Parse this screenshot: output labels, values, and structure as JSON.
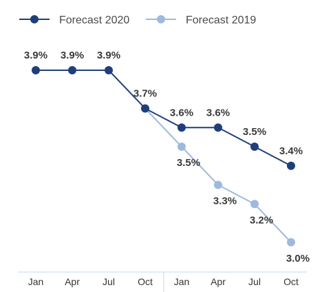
{
  "chart_data": {
    "type": "line",
    "title": "",
    "xlabel": "",
    "ylabel": "",
    "categories": [
      "Jan",
      "Apr",
      "Jul",
      "Oct",
      "Jan",
      "Apr",
      "Jul",
      "Oct"
    ],
    "ylim": [
      2.85,
      4.05
    ],
    "grid": false,
    "legend_position": "top-left",
    "series": [
      {
        "name": "Forecast 2020",
        "color": "#1f3f7a",
        "values": [
          3.9,
          3.9,
          3.9,
          3.7,
          3.6,
          3.6,
          3.5,
          3.4
        ],
        "labels": [
          "3.9%",
          "3.9%",
          "3.9%",
          "3.7%",
          "3.6%",
          "3.6%",
          "3.5%",
          "3.4%"
        ]
      },
      {
        "name": "Forecast 2019",
        "color": "#9fb9dd",
        "values": [
          null,
          null,
          null,
          3.7,
          3.5,
          3.3,
          3.2,
          3.0
        ],
        "labels": [
          "",
          "",
          "",
          "",
          "3.5%",
          "3.3%",
          "3.2%",
          "3.0%"
        ]
      }
    ],
    "axis_color": "#c9d7ea"
  }
}
